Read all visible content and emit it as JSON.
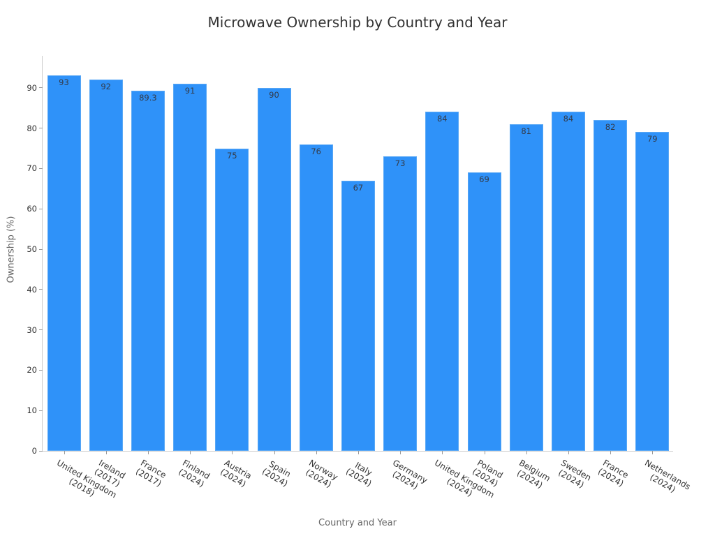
{
  "chart_data": {
    "type": "bar",
    "title": "Microwave Ownership by Country and Year",
    "xlabel": "Country and Year",
    "ylabel": "Ownership (%)",
    "ylim": [
      0,
      98
    ],
    "yticks": [
      0,
      10,
      20,
      30,
      40,
      50,
      60,
      70,
      80,
      90
    ],
    "grid": false,
    "legend": null,
    "categories": [
      "United Kingdom (2018)",
      "Ireland (2017)",
      "France (2017)",
      "Finland (2024)",
      "Austria (2024)",
      "Spain (2024)",
      "Norway (2024)",
      "Italy (2024)",
      "Germany (2024)",
      "United Kingdom (2024)",
      "Poland (2024)",
      "Belgium (2024)",
      "Sweden (2024)",
      "France (2024)",
      "Netherlands (2024)"
    ],
    "category_lines": [
      [
        "United Kingdom",
        "(2018)"
      ],
      [
        "Ireland",
        "(2017)"
      ],
      [
        "France",
        "(2017)"
      ],
      [
        "Finland",
        "(2024)"
      ],
      [
        "Austria",
        "(2024)"
      ],
      [
        "Spain",
        "(2024)"
      ],
      [
        "Norway",
        "(2024)"
      ],
      [
        "Italy",
        "(2024)"
      ],
      [
        "Germany",
        "(2024)"
      ],
      [
        "United Kingdom",
        "(2024)"
      ],
      [
        "Poland",
        "(2024)"
      ],
      [
        "Belgium",
        "(2024)"
      ],
      [
        "Sweden",
        "(2024)"
      ],
      [
        "France",
        "(2024)"
      ],
      [
        "Netherlands",
        "(2024)"
      ]
    ],
    "values": [
      93,
      92,
      89.3,
      91,
      75,
      90,
      76,
      67,
      73,
      84,
      69,
      81,
      84,
      82,
      79
    ],
    "value_labels": [
      "93",
      "92",
      "89.3",
      "91",
      "75",
      "90",
      "76",
      "67",
      "73",
      "84",
      "69",
      "81",
      "84",
      "82",
      "79"
    ],
    "colors": {
      "bar": "#2f92f9",
      "bar_edge": "#5aa8f5",
      "label": "#333a48"
    }
  }
}
